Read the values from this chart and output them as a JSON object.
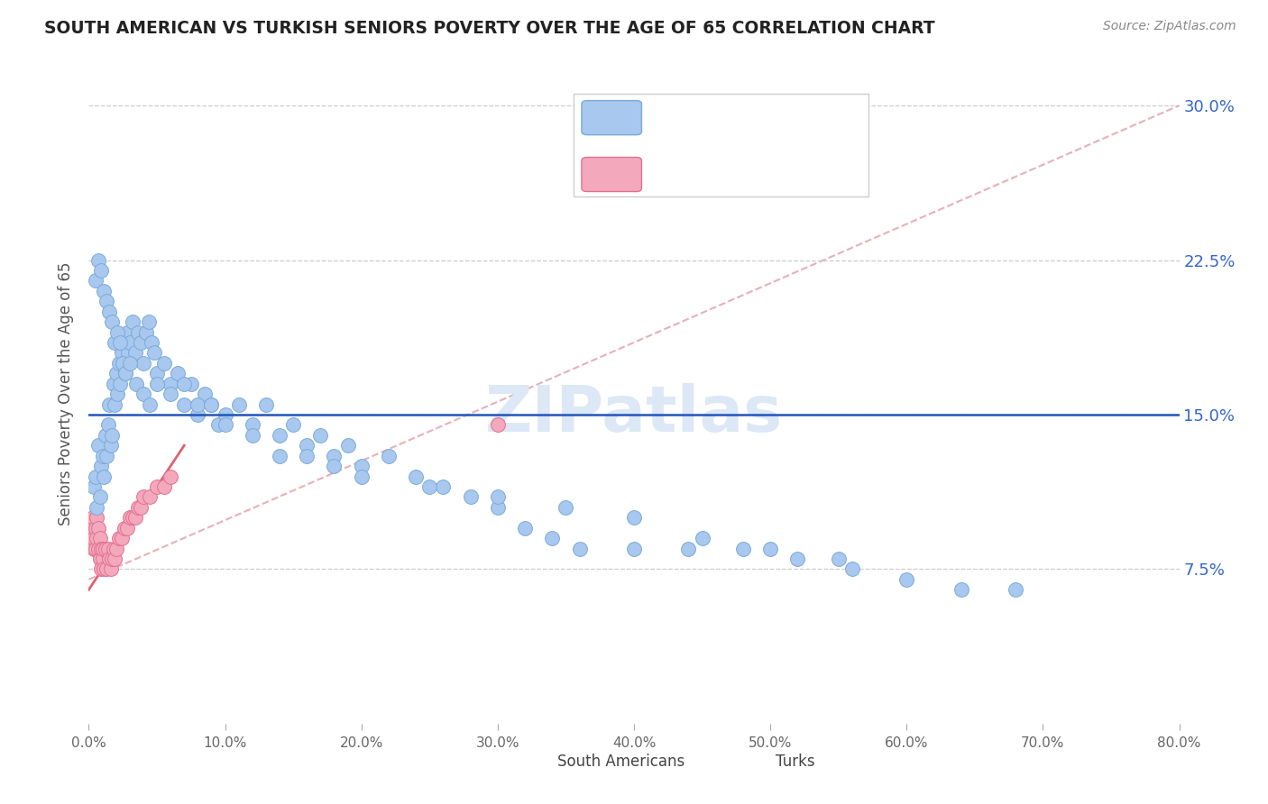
{
  "title": "SOUTH AMERICAN VS TURKISH SENIORS POVERTY OVER THE AGE OF 65 CORRELATION CHART",
  "source": "Source: ZipAtlas.com",
  "ylabel": "Seniors Poverty Over the Age of 65",
  "ytick_labels": [
    "7.5%",
    "15.0%",
    "22.5%",
    "30.0%"
  ],
  "ytick_vals": [
    0.075,
    0.15,
    0.225,
    0.3
  ],
  "xlim": [
    0.0,
    0.8
  ],
  "ylim": [
    0.0,
    0.32
  ],
  "hline_y": 0.15,
  "sa_color": "#a8c8f0",
  "tk_color": "#f4a8bc",
  "sa_edge": "#7aaad4",
  "tk_edge": "#e07090",
  "hline_color": "#2255bb",
  "sa_trendline_color": "#e8b0b8",
  "tk_trendline_color": "#e06070",
  "watermark_color": "#dce8f5",
  "watermark": "ZIPatlas",
  "sa_x": [
    0.004,
    0.005,
    0.006,
    0.007,
    0.008,
    0.009,
    0.01,
    0.011,
    0.012,
    0.013,
    0.014,
    0.015,
    0.016,
    0.017,
    0.018,
    0.019,
    0.02,
    0.021,
    0.022,
    0.023,
    0.024,
    0.025,
    0.026,
    0.027,
    0.028,
    0.029,
    0.03,
    0.032,
    0.034,
    0.036,
    0.038,
    0.04,
    0.042,
    0.044,
    0.046,
    0.048,
    0.05,
    0.055,
    0.06,
    0.065,
    0.07,
    0.075,
    0.08,
    0.085,
    0.09,
    0.095,
    0.1,
    0.11,
    0.12,
    0.13,
    0.14,
    0.15,
    0.16,
    0.17,
    0.18,
    0.19,
    0.2,
    0.22,
    0.24,
    0.26,
    0.28,
    0.3,
    0.32,
    0.34,
    0.36,
    0.4,
    0.44,
    0.48,
    0.52,
    0.56,
    0.6,
    0.64,
    0.68,
    0.005,
    0.007,
    0.009,
    0.011,
    0.013,
    0.015,
    0.017,
    0.019,
    0.021,
    0.023,
    0.025,
    0.027,
    0.03,
    0.035,
    0.04,
    0.045,
    0.05,
    0.06,
    0.07,
    0.08,
    0.09,
    0.1,
    0.12,
    0.14,
    0.16,
    0.18,
    0.2,
    0.25,
    0.3,
    0.35,
    0.4,
    0.45,
    0.5,
    0.55
  ],
  "sa_y": [
    0.115,
    0.12,
    0.105,
    0.135,
    0.11,
    0.125,
    0.13,
    0.12,
    0.14,
    0.13,
    0.145,
    0.155,
    0.135,
    0.14,
    0.165,
    0.155,
    0.17,
    0.16,
    0.175,
    0.165,
    0.18,
    0.175,
    0.185,
    0.17,
    0.19,
    0.18,
    0.185,
    0.195,
    0.18,
    0.19,
    0.185,
    0.175,
    0.19,
    0.195,
    0.185,
    0.18,
    0.17,
    0.175,
    0.165,
    0.17,
    0.155,
    0.165,
    0.15,
    0.16,
    0.155,
    0.145,
    0.15,
    0.155,
    0.145,
    0.155,
    0.14,
    0.145,
    0.135,
    0.14,
    0.13,
    0.135,
    0.125,
    0.13,
    0.12,
    0.115,
    0.11,
    0.105,
    0.095,
    0.09,
    0.085,
    0.085,
    0.085,
    0.085,
    0.08,
    0.075,
    0.07,
    0.065,
    0.065,
    0.215,
    0.225,
    0.22,
    0.21,
    0.205,
    0.2,
    0.195,
    0.185,
    0.19,
    0.185,
    0.175,
    0.17,
    0.175,
    0.165,
    0.16,
    0.155,
    0.165,
    0.16,
    0.165,
    0.155,
    0.155,
    0.145,
    0.14,
    0.13,
    0.13,
    0.125,
    0.12,
    0.115,
    0.11,
    0.105,
    0.1,
    0.09,
    0.085,
    0.08
  ],
  "tk_x": [
    0.002,
    0.003,
    0.004,
    0.004,
    0.005,
    0.005,
    0.006,
    0.006,
    0.007,
    0.007,
    0.008,
    0.008,
    0.009,
    0.009,
    0.01,
    0.01,
    0.011,
    0.012,
    0.013,
    0.014,
    0.015,
    0.016,
    0.017,
    0.018,
    0.019,
    0.02,
    0.022,
    0.024,
    0.026,
    0.028,
    0.03,
    0.032,
    0.034,
    0.036,
    0.038,
    0.04,
    0.045,
    0.05,
    0.055,
    0.06,
    0.3
  ],
  "tk_y": [
    0.095,
    0.1,
    0.085,
    0.09,
    0.095,
    0.085,
    0.1,
    0.09,
    0.095,
    0.085,
    0.09,
    0.08,
    0.085,
    0.075,
    0.08,
    0.085,
    0.075,
    0.085,
    0.075,
    0.085,
    0.08,
    0.075,
    0.08,
    0.085,
    0.08,
    0.085,
    0.09,
    0.09,
    0.095,
    0.095,
    0.1,
    0.1,
    0.1,
    0.105,
    0.105,
    0.11,
    0.11,
    0.115,
    0.115,
    0.12,
    0.145
  ]
}
